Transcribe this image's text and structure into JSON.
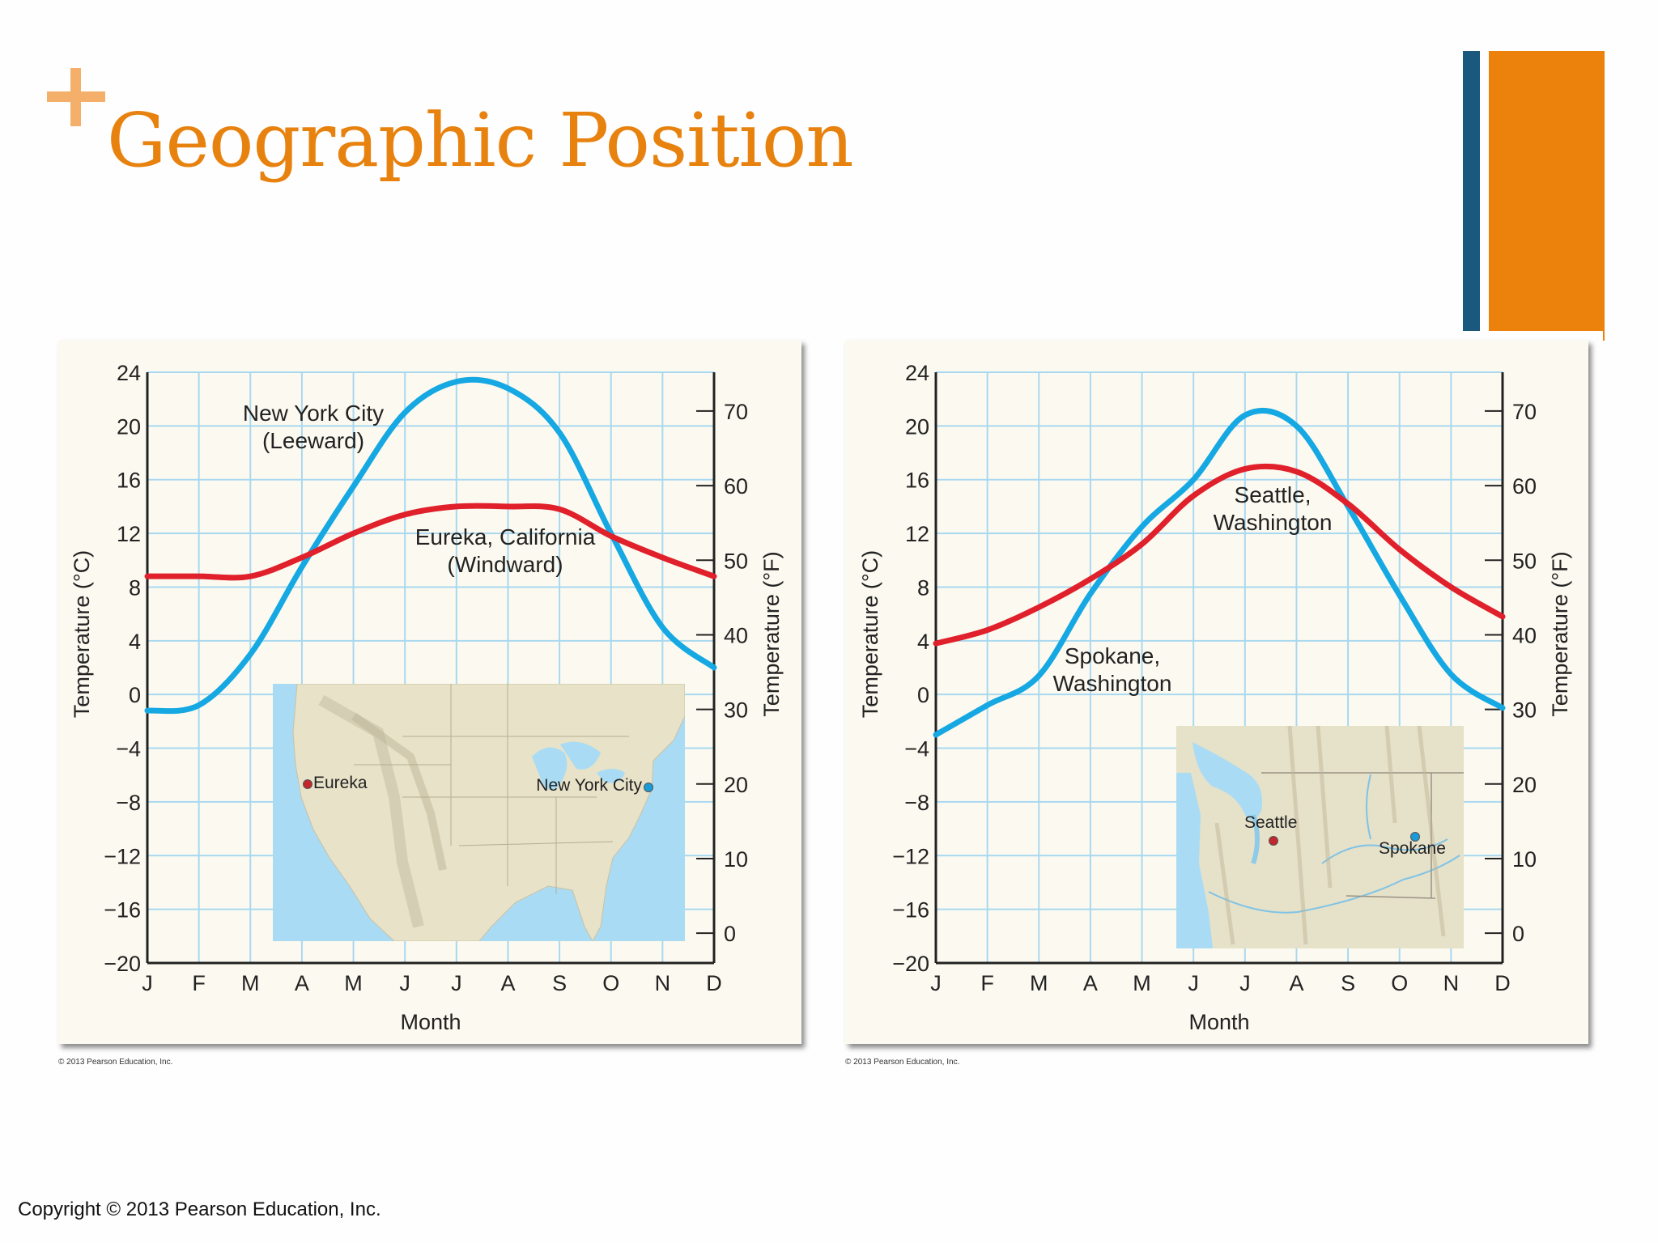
{
  "slide": {
    "title": "Geographic Position",
    "plus_symbol": "+",
    "copyright": "Copyright © 2013 Pearson Education, Inc.",
    "accent_colors": {
      "title": "#e8820f",
      "plus": "#f4b06a",
      "bar_blue": "#1b587e",
      "bar_orange": "#ec820c"
    }
  },
  "chart_data": [
    {
      "type": "line",
      "title": "",
      "xlabel": "Month",
      "ylabel": "Temperature (°C)",
      "ylabel_right": "Temperature (°F)",
      "categories": [
        "J",
        "F",
        "M",
        "A",
        "M",
        "J",
        "J",
        "A",
        "S",
        "O",
        "N",
        "D"
      ],
      "ylim": [
        -20,
        24
      ],
      "yticks": [
        24,
        20,
        16,
        12,
        8,
        4,
        0,
        -4,
        -8,
        -12,
        -16,
        -20
      ],
      "yticks_right": [
        70,
        60,
        50,
        40,
        30,
        20,
        10,
        0
      ],
      "grid": true,
      "series": [
        {
          "name": "New York City (Leeward)",
          "color": "#16a8e3",
          "values": [
            -1.2,
            -0.8,
            3.0,
            9.5,
            15.5,
            21.0,
            23.3,
            22.8,
            19.5,
            12.0,
            5.0,
            2.0
          ]
        },
        {
          "name": "Eureka, California (Windward)",
          "color": "#e0202b",
          "values": [
            8.8,
            8.8,
            8.8,
            10.2,
            12.0,
            13.4,
            14.0,
            14.0,
            13.8,
            11.8,
            10.2,
            8.8
          ]
        }
      ],
      "annotations": [
        {
          "line1": "New York City",
          "line2": "(Leeward)"
        },
        {
          "line1": "Eureka, California",
          "line2": "(Windward)"
        }
      ],
      "inset_map": {
        "labels": [
          "Eureka",
          "New York City"
        ]
      },
      "credit": "© 2013 Pearson Education, Inc."
    },
    {
      "type": "line",
      "title": "",
      "xlabel": "Month",
      "ylabel": "Temperature (°C)",
      "ylabel_right": "Temperature (°F)",
      "categories": [
        "J",
        "F",
        "M",
        "A",
        "M",
        "J",
        "J",
        "A",
        "S",
        "O",
        "N",
        "D"
      ],
      "ylim": [
        -20,
        24
      ],
      "yticks": [
        24,
        20,
        16,
        12,
        8,
        4,
        0,
        -4,
        -8,
        -12,
        -16,
        -20
      ],
      "yticks_right": [
        70,
        60,
        50,
        40,
        30,
        20,
        10,
        0
      ],
      "grid": true,
      "series": [
        {
          "name": "Spokane, Washington",
          "color": "#16a8e3",
          "values": [
            -3.0,
            -0.8,
            1.4,
            7.5,
            12.5,
            16.0,
            20.8,
            20.0,
            14.0,
            7.4,
            1.5,
            -1.0
          ]
        },
        {
          "name": "Seattle, Washington",
          "color": "#e0202b",
          "values": [
            3.8,
            4.8,
            6.5,
            8.6,
            11.2,
            14.8,
            16.8,
            16.6,
            14.2,
            10.8,
            8.0,
            5.8
          ]
        }
      ],
      "annotations": [
        {
          "line1": "Spokane,",
          "line2": "Washington"
        },
        {
          "line1": "Seattle,",
          "line2": "Washington"
        }
      ],
      "inset_map": {
        "labels": [
          "Seattle",
          "Spokane"
        ]
      },
      "credit": "© 2013 Pearson Education, Inc."
    }
  ]
}
